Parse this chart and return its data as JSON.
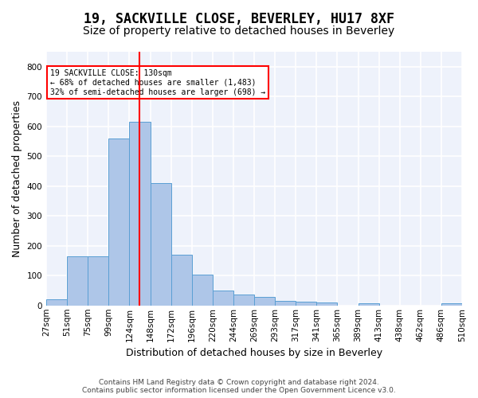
{
  "title_line1": "19, SACKVILLE CLOSE, BEVERLEY, HU17 8XF",
  "title_line2": "Size of property relative to detached houses in Beverley",
  "xlabel": "Distribution of detached houses by size in Beverley",
  "ylabel": "Number of detached properties",
  "bar_values": [
    20,
    165,
    165,
    560,
    615,
    410,
    170,
    103,
    50,
    38,
    30,
    15,
    12,
    10,
    0,
    7,
    0,
    0,
    0,
    8
  ],
  "bar_labels": [
    "27sqm",
    "51sqm",
    "75sqm",
    "99sqm",
    "124sqm",
    "148sqm",
    "172sqm",
    "196sqm",
    "220sqm",
    "244sqm",
    "269sqm",
    "293sqm",
    "317sqm",
    "341sqm",
    "365sqm",
    "389sqm",
    "413sqm",
    "438sqm",
    "462sqm",
    "486sqm",
    "510sqm"
  ],
  "bar_color": "#aec6e8",
  "bar_edge_color": "#5a9fd4",
  "vline_x": 4.5,
  "vline_color": "red",
  "annotation_text": "19 SACKVILLE CLOSE: 130sqm\n← 68% of detached houses are smaller (1,483)\n32% of semi-detached houses are larger (698) →",
  "annotation_box_color": "white",
  "annotation_box_edge_color": "red",
  "ylim": [
    0,
    850
  ],
  "yticks": [
    0,
    100,
    200,
    300,
    400,
    500,
    600,
    700,
    800
  ],
  "background_color": "#eef2fb",
  "grid_color": "white",
  "footnote": "Contains HM Land Registry data © Crown copyright and database right 2024.\nContains public sector information licensed under the Open Government Licence v3.0.",
  "title_fontsize": 12,
  "subtitle_fontsize": 10,
  "axis_label_fontsize": 9,
  "tick_fontsize": 7.5,
  "footnote_fontsize": 6.5
}
